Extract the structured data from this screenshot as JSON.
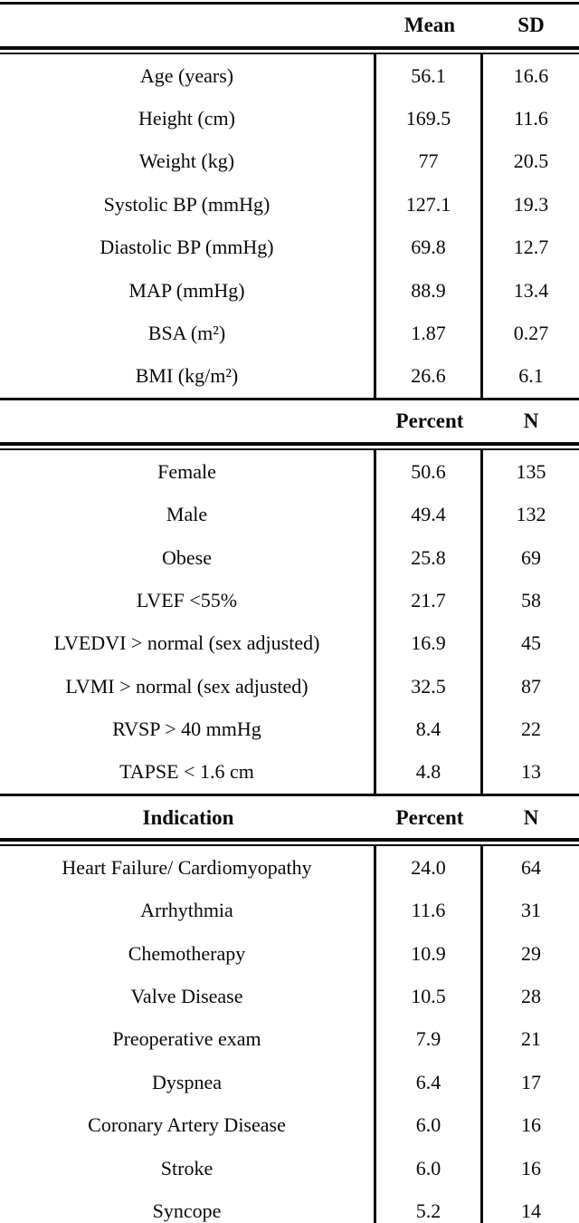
{
  "table": {
    "colors": {
      "text": "#0a0a0a",
      "background": "#ffffff",
      "rule": "#0a0a0a"
    },
    "sections": [
      {
        "name": "demographics",
        "header": {
          "label": "",
          "col1": "Mean",
          "col2": "SD"
        },
        "rows": [
          {
            "label": "Age (years)",
            "v1": "56.1",
            "v2": "16.6"
          },
          {
            "label": "Height (cm)",
            "v1": "169.5",
            "v2": "11.6"
          },
          {
            "label": "Weight (kg)",
            "v1": "77",
            "v2": "20.5"
          },
          {
            "label": "Systolic BP (mmHg)",
            "v1": "127.1",
            "v2": "19.3"
          },
          {
            "label": "Diastolic BP (mmHg)",
            "v1": "69.8",
            "v2": "12.7"
          },
          {
            "label": "MAP (mmHg)",
            "v1": "88.9",
            "v2": "13.4"
          },
          {
            "label": "BSA (m²)",
            "v1": "1.87",
            "v2": "0.27"
          },
          {
            "label": "BMI (kg/m²)",
            "v1": "26.6",
            "v2": "6.1"
          }
        ]
      },
      {
        "name": "categorical",
        "header": {
          "label": "",
          "col1": "Percent",
          "col2": "N"
        },
        "rows": [
          {
            "label": "Female",
            "v1": "50.6",
            "v2": "135"
          },
          {
            "label": "Male",
            "v1": "49.4",
            "v2": "132"
          },
          {
            "label": "Obese",
            "v1": "25.8",
            "v2": "69"
          },
          {
            "label": "LVEF <55%",
            "v1": "21.7",
            "v2": "58"
          },
          {
            "label": "LVEDVI > normal (sex adjusted)",
            "v1": "16.9",
            "v2": "45"
          },
          {
            "label": "LVMI > normal (sex adjusted)",
            "v1": "32.5",
            "v2": "87"
          },
          {
            "label": "RVSP > 40 mmHg",
            "v1": "8.4",
            "v2": "22"
          },
          {
            "label": "TAPSE < 1.6 cm",
            "v1": "4.8",
            "v2": "13"
          }
        ]
      },
      {
        "name": "indication",
        "header": {
          "label": "Indication",
          "col1": "Percent",
          "col2": "N"
        },
        "rows": [
          {
            "label": "Heart Failure/ Cardiomyopathy",
            "v1": "24.0",
            "v2": "64"
          },
          {
            "label": "Arrhythmia",
            "v1": "11.6",
            "v2": "31"
          },
          {
            "label": "Chemotherapy",
            "v1": "10.9",
            "v2": "29"
          },
          {
            "label": "Valve Disease",
            "v1": "10.5",
            "v2": "28"
          },
          {
            "label": "Preoperative exam",
            "v1": "7.9",
            "v2": "21"
          },
          {
            "label": "Dyspnea",
            "v1": "6.4",
            "v2": "17"
          },
          {
            "label": "Coronary Artery Disease",
            "v1": "6.0",
            "v2": "16"
          },
          {
            "label": "Stroke",
            "v1": "6.0",
            "v2": "16"
          },
          {
            "label": "Syncope",
            "v1": "5.2",
            "v2": "14"
          }
        ]
      }
    ]
  }
}
